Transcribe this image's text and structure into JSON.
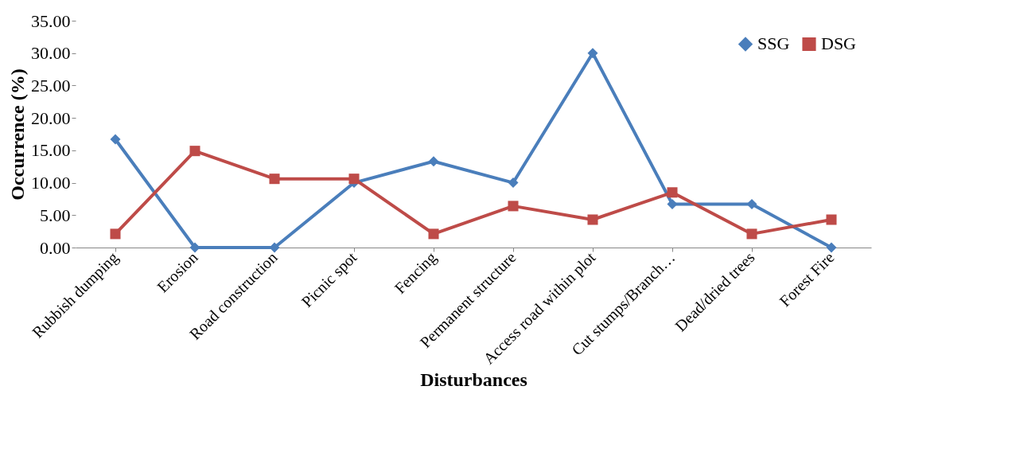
{
  "chart_data": {
    "type": "line",
    "xlabel": "Disturbances",
    "ylabel": "Occurrence (%)",
    "categories": [
      "Rubbish dumping",
      "Erosion",
      "Road construction",
      "Picnic spot",
      "Fencing",
      "Permanent structure",
      "Access road within plot",
      "Cut stumps/Branch…",
      "Dead/dried trees",
      "Forest Fire"
    ],
    "series": [
      {
        "name": "SSG",
        "color": "#4a7ebb",
        "marker": "diamond",
        "values": [
          16.7,
          0,
          0,
          10,
          13.3,
          10,
          30,
          6.7,
          6.7,
          0
        ]
      },
      {
        "name": "DSG",
        "color": "#be4b48",
        "marker": "square",
        "values": [
          2.1,
          14.9,
          10.6,
          10.6,
          2.1,
          6.4,
          4.3,
          8.5,
          2.1,
          4.3
        ]
      }
    ],
    "ylim": [
      0,
      35
    ],
    "yticks": [
      {
        "value": 0,
        "label": "0.00"
      },
      {
        "value": 5,
        "label": "5.00"
      },
      {
        "value": 10,
        "label": "10.00"
      },
      {
        "value": 15,
        "label": "15.00"
      },
      {
        "value": 20,
        "label": "20.00"
      },
      {
        "value": 25,
        "label": "25.00"
      },
      {
        "value": 30,
        "label": "30.00"
      },
      {
        "value": 35,
        "label": "35.00"
      }
    ],
    "grid": false,
    "legend": "top right",
    "line_style": "solid"
  }
}
